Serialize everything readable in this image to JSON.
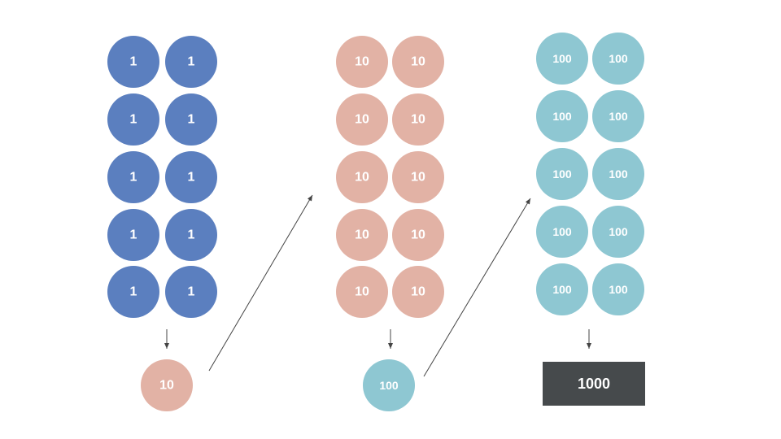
{
  "groups": [
    {
      "color": "#5b7fbf",
      "items": [
        1,
        1,
        1,
        1,
        1,
        1,
        1,
        1,
        1,
        1
      ],
      "result": 10
    },
    {
      "color": "#e2b2a5",
      "items": [
        10,
        10,
        10,
        10,
        10,
        10,
        10,
        10,
        10,
        10
      ],
      "result": 100
    },
    {
      "color": "#8ec7d2",
      "items": [
        100,
        100,
        100,
        100,
        100,
        100,
        100,
        100,
        100,
        100
      ],
      "result": 1000
    }
  ]
}
